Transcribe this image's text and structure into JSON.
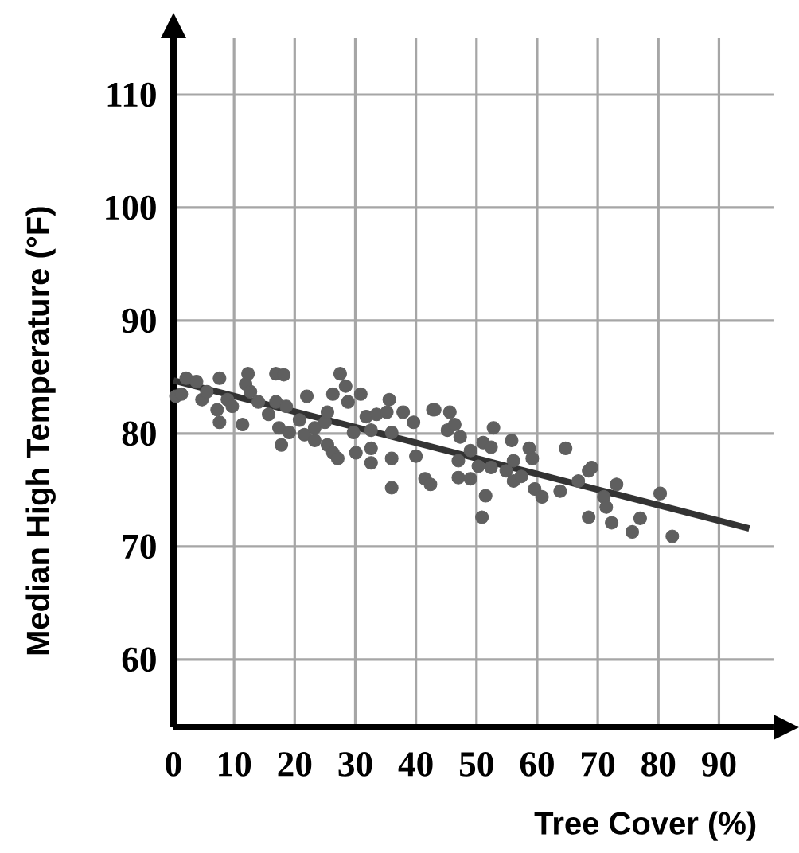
{
  "chart_data": {
    "type": "scatter",
    "xlabel": "Tree Cover (%)",
    "ylabel": "Median High Temperature (°F)",
    "xlim": [
      0,
      99
    ],
    "ylim": [
      54,
      115
    ],
    "xticks": [
      0,
      10,
      20,
      30,
      40,
      50,
      60,
      70,
      80,
      90
    ],
    "yticks": [
      60,
      70,
      80,
      90,
      100,
      110
    ],
    "grid": true,
    "series": [
      {
        "color": "#5f5f5f",
        "marker": "circle",
        "x": [
          0.4,
          2.1,
          3.8,
          4.7,
          1.3,
          5.5,
          7.6,
          7.2,
          7.6,
          8.9,
          9.7,
          11.4,
          11.9,
          12.3,
          12.7,
          14.0,
          15.7,
          16.9,
          18.2,
          16.9,
          17.4,
          17.8,
          19.1,
          18.6,
          20.8,
          22.0,
          21.6,
          23.3,
          23.3,
          25.0,
          25.4,
          26.3,
          27.1,
          25.4,
          26.3,
          27.5,
          28.4,
          28.8,
          30.9,
          29.7,
          30.1,
          31.8,
          32.6,
          32.6,
          32.6,
          33.5,
          35.6,
          35.2,
          36.0,
          36.0,
          37.9,
          39.6,
          40.0,
          36.0,
          41.5,
          42.4,
          42.8,
          43.1,
          45.6,
          45.2,
          46.4,
          47.3,
          47.0,
          47.0,
          49.0,
          49.0,
          50.3,
          51.1,
          52.4,
          52.8,
          52.4,
          51.5,
          50.9,
          55.8,
          54.9,
          56.1,
          56.1,
          57.4,
          58.7,
          59.2,
          59.6,
          60.8,
          63.8,
          64.7,
          66.8,
          68.5,
          69.0,
          71.0,
          71.4,
          73.1,
          68.5,
          72.3,
          75.7,
          77.0,
          80.3,
          82.3
        ],
        "values": [
          83.3,
          84.9,
          84.6,
          83.0,
          83.5,
          83.7,
          84.9,
          82.1,
          81.0,
          83.0,
          82.4,
          80.8,
          84.4,
          85.3,
          83.7,
          82.8,
          81.7,
          85.3,
          85.2,
          82.8,
          80.5,
          79.0,
          80.1,
          82.4,
          81.2,
          83.3,
          79.9,
          80.5,
          79.4,
          81.0,
          79.0,
          78.3,
          77.8,
          81.9,
          83.5,
          85.3,
          84.2,
          82.8,
          83.5,
          80.1,
          78.3,
          81.5,
          80.3,
          77.4,
          78.7,
          81.7,
          83.0,
          81.9,
          80.1,
          77.8,
          81.9,
          81.0,
          78.0,
          75.2,
          76.0,
          75.5,
          82.1,
          82.1,
          81.9,
          80.3,
          80.8,
          79.7,
          77.6,
          76.1,
          78.5,
          76.0,
          77.1,
          79.2,
          78.8,
          80.5,
          77.0,
          74.5,
          72.6,
          79.4,
          76.7,
          77.6,
          75.8,
          76.2,
          78.7,
          77.8,
          75.1,
          74.4,
          74.9,
          78.7,
          75.8,
          76.7,
          77.0,
          74.4,
          73.5,
          75.5,
          72.6,
          72.1,
          71.3,
          72.5,
          74.7,
          70.9
        ]
      },
      {
        "type": "line",
        "marker": "none",
        "color": "#333333",
        "x": [
          0,
          95
        ],
        "values": [
          84.7,
          71.6
        ]
      }
    ]
  }
}
